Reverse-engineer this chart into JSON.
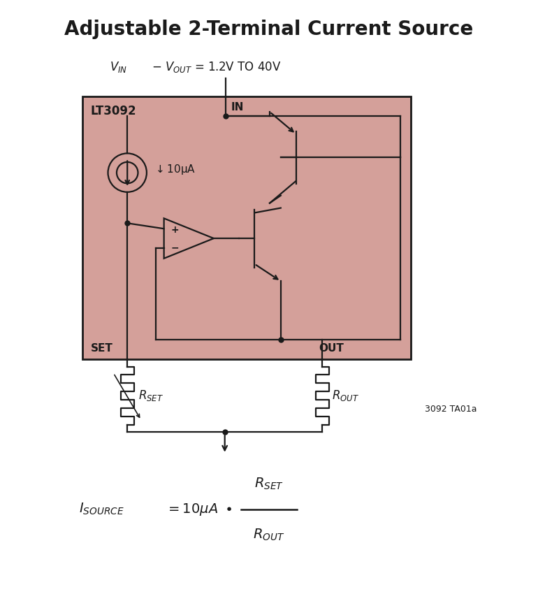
{
  "title": "Adjustable 2-Terminal Current Source",
  "title_fontsize": 20,
  "title_fontweight": "bold",
  "bg_color": "#ffffff",
  "chip_bg_color": "#d4a09a",
  "chip_border_color": "#1a1a1a",
  "line_color": "#1a1a1a",
  "chip_label": "LT3092",
  "part_num": "3092 TA01a",
  "figsize": [
    7.7,
    8.8
  ],
  "dpi": 100
}
